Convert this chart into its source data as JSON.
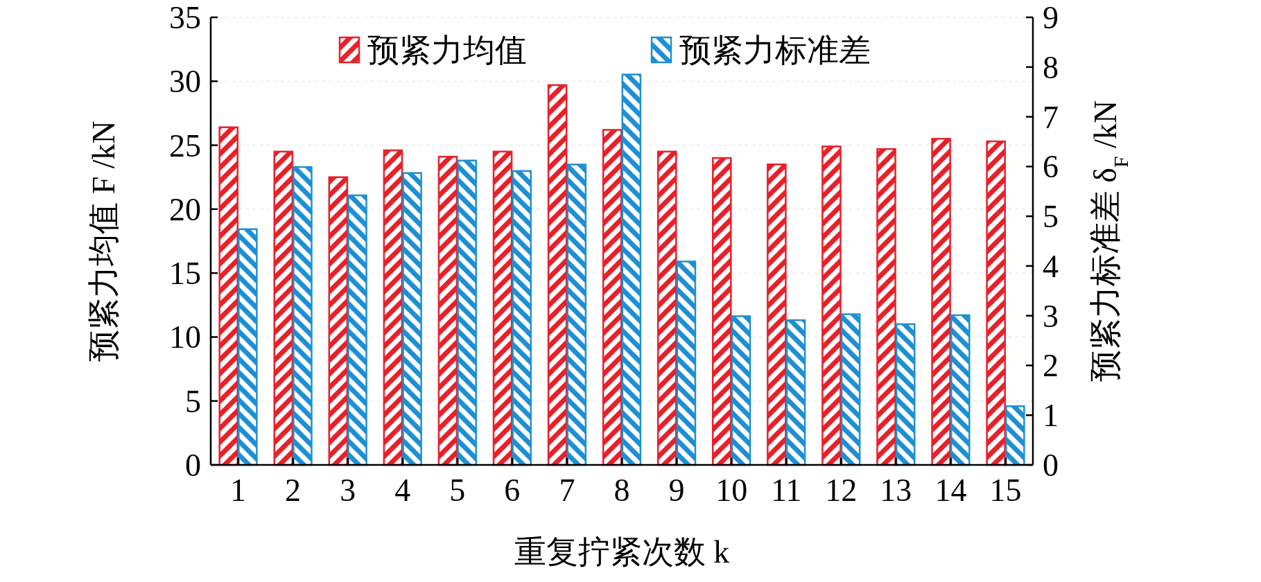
{
  "chart_data": {
    "type": "bar",
    "xlabel": "重复拧紧次数 k",
    "ylabel": "预紧力均值 F /kN",
    "y2label": "预紧力标准差 δ$_{F}$ /kN",
    "categories": [
      "1",
      "2",
      "3",
      "4",
      "5",
      "6",
      "7",
      "8",
      "9",
      "10",
      "11",
      "12",
      "13",
      "14",
      "15"
    ],
    "series": [
      {
        "name": "预紧力均值",
        "color": "#e8202a",
        "values": [
          26.4,
          24.5,
          22.5,
          24.6,
          24.1,
          24.5,
          29.7,
          26.2,
          24.5,
          24.0,
          23.5,
          24.9,
          24.7,
          25.5,
          25.3
        ]
      },
      {
        "name": "预紧力标准差",
        "color": "#1e8fd2",
        "axis": "y2",
        "values": [
          4.74,
          5.99,
          5.42,
          5.87,
          6.12,
          5.91,
          6.04,
          7.85,
          4.09,
          2.99,
          2.91,
          3.03,
          2.83,
          3.01,
          1.18
        ]
      }
    ],
    "ylim": [
      0,
      35
    ],
    "yticks": [
      0,
      5,
      10,
      15,
      20,
      25,
      30,
      35
    ],
    "y2lim": [
      0,
      9
    ],
    "y2ticks": [
      0,
      1,
      2,
      3,
      4,
      5,
      6,
      7,
      8,
      9
    ],
    "grid": "y",
    "legend": "top"
  }
}
